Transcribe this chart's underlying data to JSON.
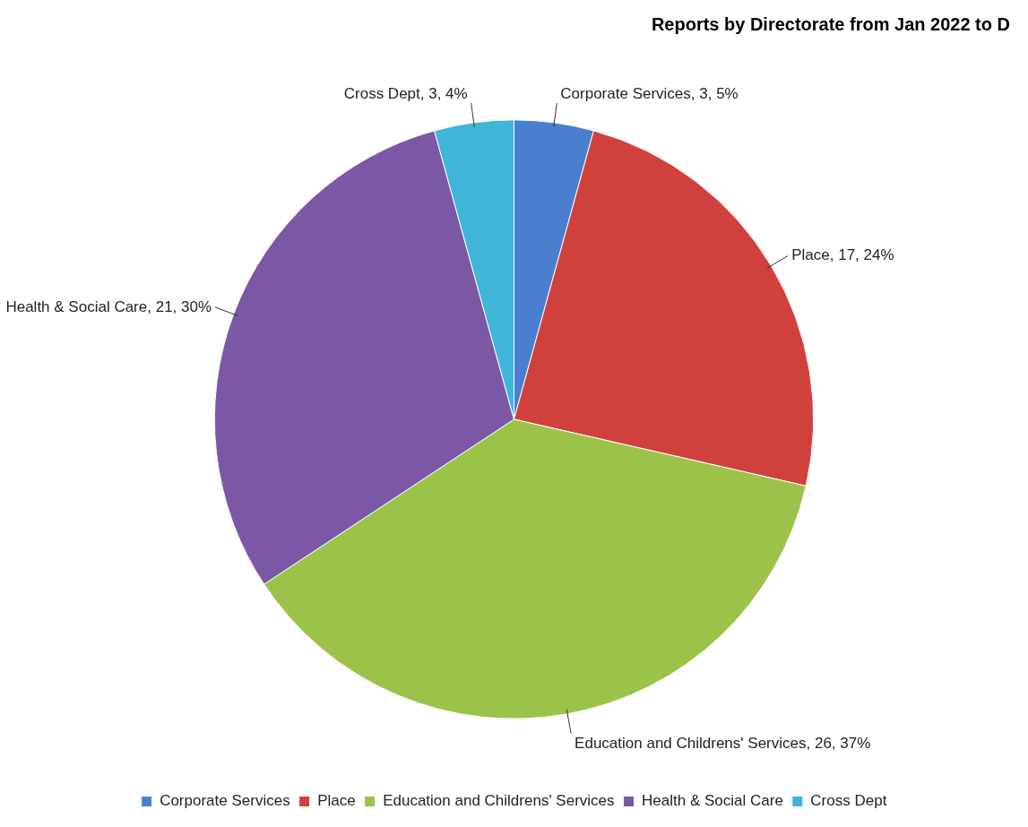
{
  "chart_data": {
    "type": "pie",
    "title": "Reports by Directorate from Jan 2022 to D",
    "categories": [
      "Corporate Services",
      "Place",
      "Education and Childrens' Services",
      "Health & Social Care",
      "Cross Dept"
    ],
    "values": [
      3,
      17,
      26,
      21,
      3
    ],
    "value_labels": [
      "Corporate Services, 3, 5%",
      "Place, 17, 24%",
      "Education and Childrens' Services, 26, 37%",
      "Health & Social Care, 21, 30%",
      "Cross Dept, 3, 4%"
    ],
    "colors": [
      "#4a7fd0",
      "#d0413e",
      "#9bc34a",
      "#7b58a6",
      "#3fb6d8"
    ],
    "legend": "bottom"
  }
}
